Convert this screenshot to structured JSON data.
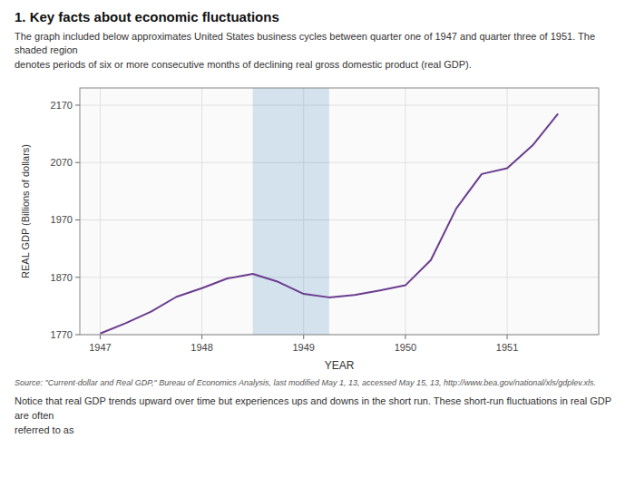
{
  "chart_data": {
    "type": "line",
    "title": "1. Key facts about economic fluctuations",
    "subtitle": "The graph included below approximates United States business cycles between quarter one of 1947 and quarter three of 1951. The shaded region\ndenotes periods of six or more consecutive months of declining real gross domestic product (real GDP).",
    "x_label": "YEAR",
    "y_label": "REAL GDP (Billions of dollars)",
    "annotations": [
      "Source: \"Current-dollar and Real GDP,\" Bureau of Economics Analysis, last modified May 1, 13, accessed May 15, 13, http://www.bea.gov/national/xls/gdplev.xls.",
      "Notice that real GDP trends upward over time but experiences ups and downs in the short run. These short-run fluctuations in real GDP are often\nreferred to as"
    ],
    "x": [
      1947.0,
      1947.25,
      1947.5,
      1947.75,
      1948.0,
      1948.25,
      1948.5,
      1948.75,
      1949.0,
      1949.25,
      1949.5,
      1949.75,
      1950.0,
      1950.25,
      1950.5,
      1950.75,
      1951.0,
      1951.25,
      1951.5
    ],
    "values": [
      1772,
      1790,
      1810,
      1836,
      1851,
      1868,
      1876,
      1862,
      1841,
      1835,
      1839,
      1847,
      1856,
      1900,
      1990,
      2050,
      2060,
      2100,
      2155
    ],
    "color": "#6a3d8f",
    "shaded_region": [
      1948.5,
      1949.25
    ],
    "xlim": [
      1946.8,
      1951.9
    ],
    "ylim": [
      1770,
      2200
    ],
    "xticks": [
      1947,
      1948,
      1949,
      1950,
      1951
    ],
    "yticks": [
      1770,
      1870,
      1970,
      2070,
      2170
    ],
    "grid": true
  }
}
